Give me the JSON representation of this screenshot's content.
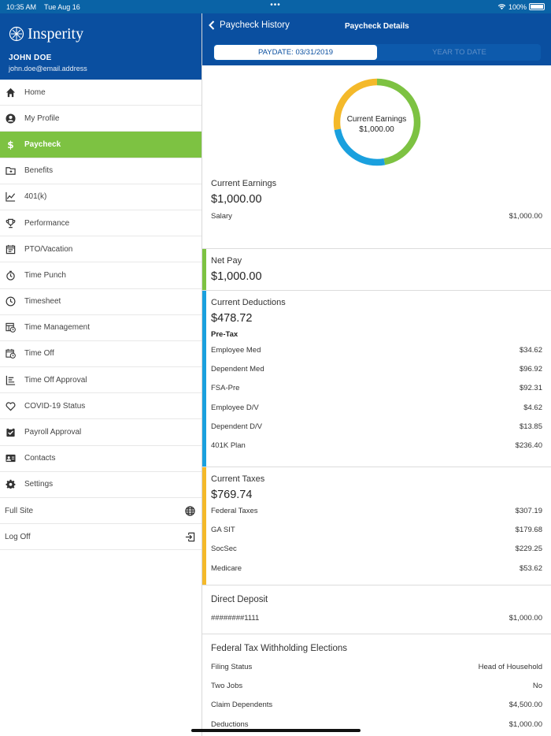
{
  "status_bar": {
    "time": "10:35 AM",
    "date": "Tue Aug 16",
    "battery": "100%"
  },
  "sidebar": {
    "brand": "Insperity",
    "user_name": "JOHN DOE",
    "user_email": "john.doe@email.address",
    "items": [
      {
        "label": "Home",
        "icon": "home-icon"
      },
      {
        "label": "My Profile",
        "icon": "profile-icon"
      },
      {
        "label": "Paycheck",
        "icon": "dollar-icon"
      },
      {
        "label": "Benefits",
        "icon": "benefits-folder-icon"
      },
      {
        "label": "401(k)",
        "icon": "chart-icon"
      },
      {
        "label": "Performance",
        "icon": "trophy-icon"
      },
      {
        "label": "PTO/Vacation",
        "icon": "calendar-icon"
      },
      {
        "label": "Time Punch",
        "icon": "stopwatch-icon"
      },
      {
        "label": "Timesheet",
        "icon": "clock-icon"
      },
      {
        "label": "Time Management",
        "icon": "time-management-icon"
      },
      {
        "label": "Time Off",
        "icon": "calendar-clock-icon"
      },
      {
        "label": "Time Off Approval",
        "icon": "approval-list-icon"
      },
      {
        "label": "COVID-19 Status",
        "icon": "heart-icon"
      },
      {
        "label": "Payroll Approval",
        "icon": "clipboard-check-icon"
      },
      {
        "label": "Contacts",
        "icon": "contact-card-icon"
      },
      {
        "label": "Settings",
        "icon": "gear-icon"
      }
    ],
    "full_site": "Full Site",
    "log_off": "Log Off"
  },
  "topnav": {
    "back_label": "Paycheck History",
    "title": "Paycheck Details",
    "tabs": [
      "PAYDATE: 03/31/2019",
      "YEAR TO DATE"
    ]
  },
  "donut": {
    "label": "Current Earnings",
    "amount": "$1,000.00",
    "segments": [
      {
        "color": "#7dc242",
        "fraction": 0.47
      },
      {
        "color": "#1aa0de",
        "fraction": 0.25
      },
      {
        "color": "#f4b92a",
        "fraction": 0.28
      }
    ]
  },
  "colors": {
    "green": "#7dc242",
    "blue": "#1aa0de",
    "yellow": "#f4b92a",
    "navy": "#0a4fa0"
  },
  "earnings": {
    "title": "Current Earnings",
    "amount": "$1,000.00",
    "rows": [
      {
        "label": "Salary",
        "value": "$1,000.00"
      }
    ]
  },
  "net_pay": {
    "title": "Net Pay",
    "amount": "$1,000.00"
  },
  "deductions": {
    "title": "Current Deductions",
    "amount": "$478.72",
    "subhead": "Pre-Tax",
    "rows": [
      {
        "label": "Employee Med",
        "value": "$34.62"
      },
      {
        "label": "Dependent Med",
        "value": "$96.92"
      },
      {
        "label": "FSA-Pre",
        "value": "$92.31"
      },
      {
        "label": "Employee D/V",
        "value": "$4.62"
      },
      {
        "label": "Dependent D/V",
        "value": "$13.85"
      },
      {
        "label": "401K Plan",
        "value": "$236.40"
      }
    ]
  },
  "taxes": {
    "title": "Current Taxes",
    "amount": "$769.74",
    "rows": [
      {
        "label": "Federal Taxes",
        "value": "$307.19"
      },
      {
        "label": "GA SIT",
        "value": "$179.68"
      },
      {
        "label": "SocSec",
        "value": "$229.25"
      },
      {
        "label": "Medicare",
        "value": "$53.62"
      }
    ]
  },
  "direct_deposit": {
    "title": "Direct Deposit",
    "rows": [
      {
        "label": "########1111",
        "value": "$1,000.00"
      }
    ]
  },
  "withholding": {
    "title": "Federal Tax Withholding Elections",
    "rows": [
      {
        "label": "Filing Status",
        "value": "Head of Household"
      },
      {
        "label": "Two Jobs",
        "value": "No"
      },
      {
        "label": "Claim Dependents",
        "value": "$4,500.00"
      },
      {
        "label": "Deductions",
        "value": "$1,000.00"
      }
    ]
  }
}
